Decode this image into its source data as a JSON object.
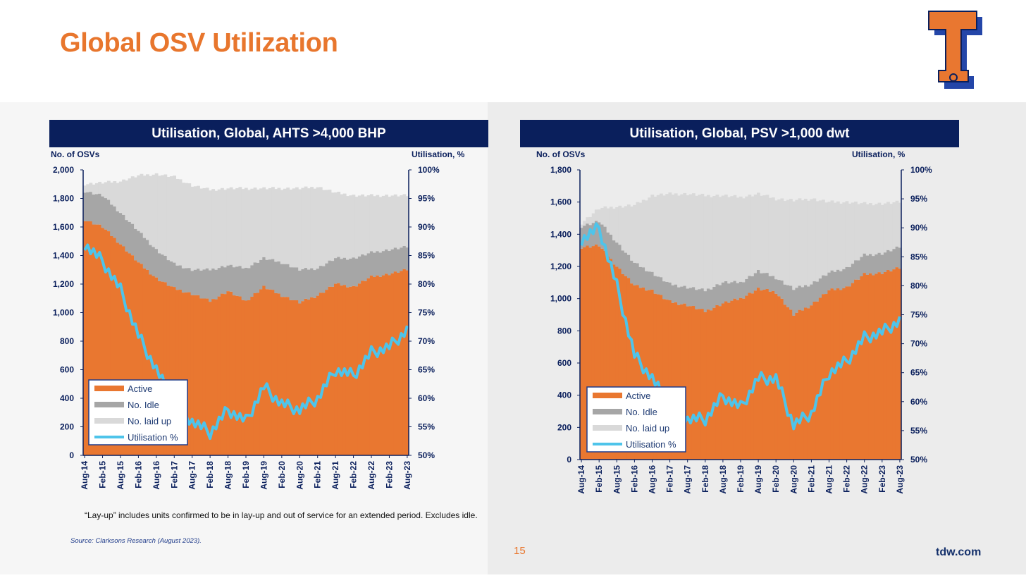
{
  "page": {
    "title": "Global OSV Utilization",
    "footnote": "“Lay-up” includes units confirmed to be in lay-up and out of service for an extended period. Excludes idle.",
    "source": "Source: Clarksons Research (August 2023).",
    "page_number": "15",
    "website": "tdw.com",
    "logo_icon": "tidewater-t-logo",
    "colors": {
      "title": "#e8762d",
      "header_bg": "#0a1f5c",
      "active": "#e97730",
      "idle": "#a6a6a6",
      "laid_up": "#d9d9d9",
      "utilisation": "#4ec4ea"
    }
  },
  "chart_data": [
    {
      "type": "area",
      "title": "Utilisation, Global, AHTS >4,000 BHP",
      "ylabel": "No. of OSVs",
      "y2label": "Utilisation, %",
      "ylim": [
        0,
        2000
      ],
      "y2lim": [
        50,
        100
      ],
      "yticks": [
        "0",
        "200",
        "400",
        "600",
        "800",
        "1,000",
        "1,200",
        "1,400",
        "1,600",
        "1,800",
        "2,000"
      ],
      "y2ticks": [
        "50%",
        "55%",
        "60%",
        "65%",
        "70%",
        "75%",
        "80%",
        "85%",
        "90%",
        "95%",
        "100%"
      ],
      "xticks": [
        "Aug-14",
        "Feb-15",
        "Aug-15",
        "Feb-16",
        "Aug-16",
        "Feb-17",
        "Aug-17",
        "Feb-18",
        "Aug-18",
        "Feb-19",
        "Aug-19",
        "Feb-20",
        "Aug-20",
        "Feb-21",
        "Aug-21",
        "Feb-22",
        "Aug-22",
        "Feb-23",
        "Aug-23"
      ],
      "legend": [
        "Active",
        "No. Idle",
        "No. laid up",
        "Utilisation %"
      ],
      "legend_position": "bottom-left",
      "x_months": [
        0,
        6,
        12,
        18,
        24,
        30,
        36,
        42,
        48,
        54,
        60,
        66,
        72,
        78,
        84,
        90,
        96,
        102,
        108
      ],
      "series": [
        {
          "name": "Active",
          "values": [
            1650,
            1600,
            1480,
            1350,
            1240,
            1170,
            1130,
            1080,
            1150,
            1080,
            1180,
            1120,
            1070,
            1120,
            1200,
            1180,
            1250,
            1270,
            1300
          ]
        },
        {
          "name": "No. Idle",
          "values": [
            200,
            220,
            220,
            220,
            200,
            170,
            170,
            220,
            180,
            230,
            200,
            230,
            230,
            190,
            180,
            200,
            170,
            170,
            160
          ]
        },
        {
          "name": "No. laid up",
          "values": [
            50,
            90,
            220,
            390,
            530,
            610,
            590,
            560,
            540,
            560,
            490,
            520,
            570,
            570,
            460,
            440,
            400,
            380,
            360
          ]
        },
        {
          "name": "Utilisation %",
          "values": [
            87,
            84,
            79,
            71,
            65,
            59,
            56,
            54,
            58,
            56,
            62,
            59,
            58,
            60,
            65,
            64,
            68,
            69,
            72
          ]
        }
      ]
    },
    {
      "type": "area",
      "title": "Utilisation, Global, PSV >1,000 dwt",
      "ylabel": "No. of OSVs",
      "y2label": "Utilisation, %",
      "ylim": [
        0,
        1800
      ],
      "y2lim": [
        50,
        100
      ],
      "yticks": [
        "0",
        "200",
        "400",
        "600",
        "800",
        "1,000",
        "1,200",
        "1,400",
        "1,600",
        "1,800"
      ],
      "y2ticks": [
        "50%",
        "55%",
        "60%",
        "65%",
        "70%",
        "75%",
        "80%",
        "85%",
        "90%",
        "95%",
        "100%"
      ],
      "xticks": [
        "Aug-14",
        "Feb-15",
        "Aug-15",
        "Feb-16",
        "Aug-16",
        "Feb-17",
        "Aug-17",
        "Feb-18",
        "Aug-18",
        "Feb-19",
        "Aug-19",
        "Feb-20",
        "Aug-20",
        "Feb-21",
        "Aug-21",
        "Feb-22",
        "Aug-22",
        "Feb-23",
        "Aug-23"
      ],
      "legend": [
        "Active",
        "No. Idle",
        "No. laid up",
        "Utilisation %"
      ],
      "legend_position": "bottom-left",
      "x_months": [
        0,
        6,
        12,
        18,
        24,
        30,
        36,
        42,
        48,
        54,
        60,
        66,
        72,
        78,
        84,
        90,
        96,
        102,
        108
      ],
      "series": [
        {
          "name": "Active",
          "values": [
            1320,
            1330,
            1200,
            1080,
            1050,
            980,
            960,
            920,
            970,
            1000,
            1060,
            1040,
            900,
            960,
            1050,
            1070,
            1150,
            1160,
            1190
          ]
        },
        {
          "name": "No. Idle",
          "values": [
            130,
            150,
            150,
            140,
            110,
            110,
            110,
            130,
            130,
            100,
            110,
            90,
            160,
            130,
            110,
            120,
            120,
            120,
            130
          ]
        },
        {
          "name": "No. laid up",
          "values": [
            20,
            80,
            220,
            360,
            480,
            560,
            580,
            590,
            540,
            530,
            480,
            490,
            550,
            530,
            440,
            410,
            320,
            310,
            280
          ]
        },
        {
          "name": "Utilisation %",
          "values": [
            88,
            90,
            80,
            68,
            64,
            59,
            57,
            57,
            61,
            59,
            64,
            64,
            56,
            58,
            65,
            67,
            71,
            72,
            74
          ]
        }
      ]
    }
  ]
}
